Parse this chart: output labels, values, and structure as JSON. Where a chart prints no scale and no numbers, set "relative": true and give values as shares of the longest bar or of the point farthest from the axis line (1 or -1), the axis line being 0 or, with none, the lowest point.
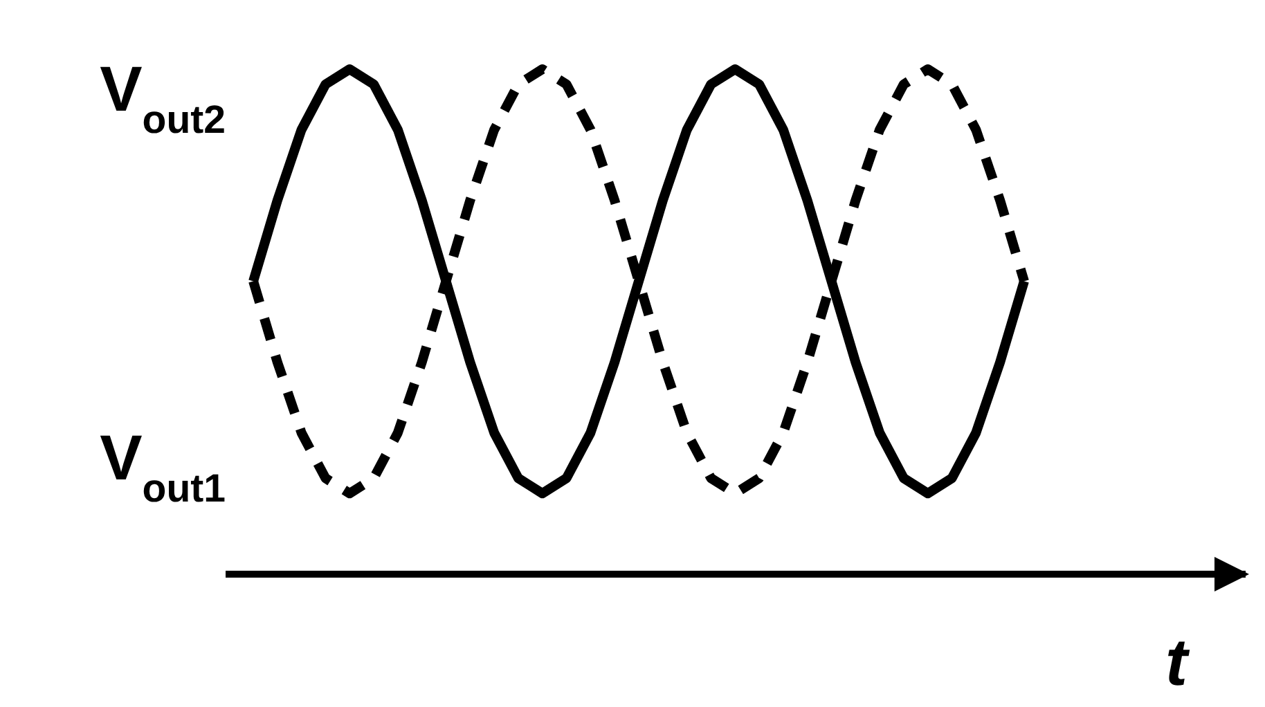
{
  "chart_data": {
    "type": "line",
    "relative": true,
    "xlabel": "t",
    "marker": "none",
    "categories": [
      null,
      null,
      null,
      null,
      null,
      null,
      null,
      null,
      null,
      null,
      null,
      null,
      null,
      null,
      null,
      null,
      null,
      null,
      null,
      null,
      null,
      null,
      null,
      null,
      null,
      null,
      null,
      null,
      null,
      null,
      null,
      null,
      null
    ],
    "series": [
      {
        "name": "V$_{out2}$",
        "color": "#000000",
        "line_style": "solid",
        "values": [
          0.58,
          0.74,
          0.88,
          0.97,
          1,
          0.97,
          0.88,
          0.74,
          0.58,
          0.42,
          0.28,
          0.19,
          0.16,
          0.19,
          0.28,
          0.42,
          0.58,
          0.74,
          0.88,
          0.97,
          1,
          0.97,
          0.88,
          0.74,
          0.58,
          0.42,
          0.28,
          0.19,
          0.16,
          0.19,
          0.28,
          0.42,
          0.58
        ]
      },
      {
        "name": "V$_{out1}$",
        "color": "#000000",
        "line_style": "dashed",
        "values": [
          0.58,
          0.42,
          0.28,
          0.19,
          0.16,
          0.19,
          0.28,
          0.42,
          0.58,
          0.74,
          0.88,
          0.97,
          1,
          0.97,
          0.88,
          0.74,
          0.58,
          0.42,
          0.28,
          0.19,
          0.16,
          0.19,
          0.28,
          0.42,
          0.58,
          0.74,
          0.88,
          0.97,
          1,
          0.97,
          0.88,
          0.74,
          0.58
        ]
      }
    ]
  }
}
